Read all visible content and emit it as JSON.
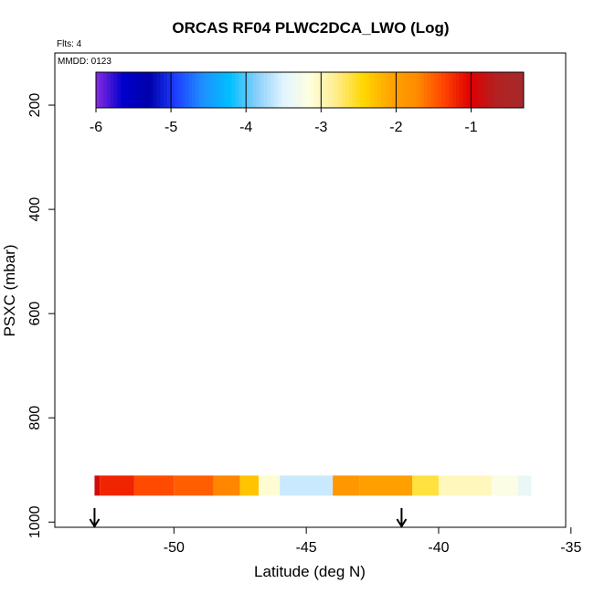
{
  "chart_data": {
    "type": "heatmap",
    "title": "ORCAS RF04 PLWC2DCA_LWO (Log)",
    "flights_label": "Flts: 4",
    "date_label": "MMDD: 0123",
    "xlabel": "Latitude (deg N)",
    "ylabel": "PSXC (mbar)",
    "xlim": [
      -54.5,
      -35.2
    ],
    "ylim": [
      1010,
      100
    ],
    "x_ticks": [
      -50,
      -45,
      -40,
      -35
    ],
    "x_tick_labels": [
      "-50",
      "-45",
      "-40",
      "-35"
    ],
    "y_ticks": [
      200,
      400,
      600,
      800,
      1000
    ],
    "y_tick_labels": [
      "200",
      "400",
      "600",
      "800",
      "1000"
    ],
    "colorbar": {
      "range": [
        -6.0,
        -0.3
      ],
      "ticks": [
        -6,
        -5,
        -4,
        -3,
        -2,
        -1
      ],
      "tick_labels": [
        "-6",
        "-5",
        "-4",
        "-3",
        "-2",
        "-1"
      ],
      "colors": [
        "#8a2be2",
        "#0000cd",
        "#0000aa",
        "#1e40ff",
        "#1e90ff",
        "#00bfff",
        "#87cefa",
        "#e0f4ff",
        "#ffffe0",
        "#ffec8b",
        "#ffd700",
        "#ffa500",
        "#ff8c00",
        "#ff4500",
        "#e00000",
        "#b22222",
        "#a52a2a"
      ]
    },
    "arrows_at_latitude": [
      -53.0,
      -41.4
    ],
    "rows": [
      {
        "pressure": 930,
        "bins": [
          {
            "x0": -53.0,
            "x1": -52.8,
            "v": -0.9
          },
          {
            "x0": -52.8,
            "x1": -51.5,
            "v": -1.2
          },
          {
            "x0": -51.5,
            "x1": -50.0,
            "v": -1.4
          },
          {
            "x0": -50.0,
            "x1": -48.5,
            "v": -1.5
          },
          {
            "x0": -48.5,
            "x1": -47.5,
            "v": -1.7
          },
          {
            "x0": -47.5,
            "x1": -46.8,
            "v": -2.3
          },
          {
            "x0": -46.8,
            "x1": -46.0,
            "v": -3.1
          },
          {
            "x0": -46.0,
            "x1": -44.0,
            "v": -3.6
          },
          {
            "x0": -44.0,
            "x1": -43.0,
            "v": -1.9
          },
          {
            "x0": -43.0,
            "x1": -41.0,
            "v": -2.0
          },
          {
            "x0": -41.0,
            "x1": -40.0,
            "v": -2.6
          },
          {
            "x0": -40.0,
            "x1": -38.0,
            "v": -3.0
          },
          {
            "x0": -38.0,
            "x1": -37.0,
            "v": -3.2
          },
          {
            "x0": -37.0,
            "x1": -36.5,
            "v": -3.4
          }
        ]
      }
    ]
  }
}
